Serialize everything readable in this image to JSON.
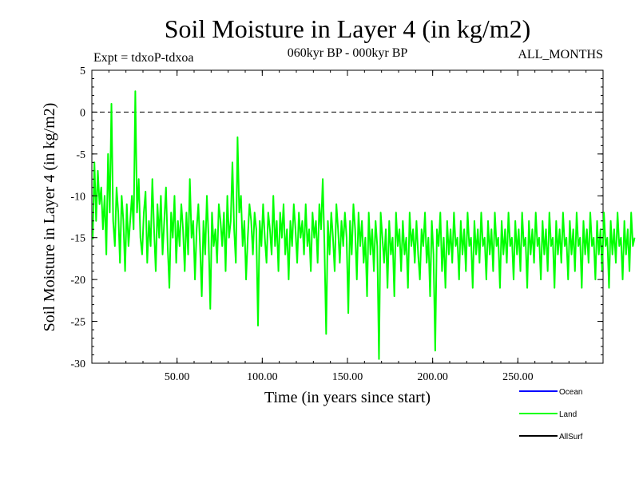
{
  "chart_data": {
    "type": "line",
    "title": "Soil Moisture in Layer 4 (in kg/m2)",
    "subtitle": "060kyr BP - 000kyr BP",
    "experiment": "Expt = tdxoP-tdxoa",
    "months": "ALL_MONTHS",
    "xlabel": "Time (in years since start)",
    "ylabel": "Soil Moisture in Layer 4 (in kg/m2)",
    "xlim": [
      0,
      300
    ],
    "ylim": [
      -30,
      5
    ],
    "x_ticks": [
      {
        "value": 50,
        "label": "50.00"
      },
      {
        "value": 100,
        "label": "100.00"
      },
      {
        "value": 150,
        "label": "150.00"
      },
      {
        "value": 200,
        "label": "200.00"
      },
      {
        "value": 250,
        "label": "250.00"
      }
    ],
    "y_ticks": [
      {
        "value": 5,
        "label": "5"
      },
      {
        "value": 0,
        "label": "0"
      },
      {
        "value": -5,
        "label": "-5"
      },
      {
        "value": -10,
        "label": "-10"
      },
      {
        "value": -15,
        "label": "-15"
      },
      {
        "value": -20,
        "label": "-20"
      },
      {
        "value": -25,
        "label": "-25"
      },
      {
        "value": -30,
        "label": "-30"
      }
    ],
    "zero_line": {
      "value": 0,
      "style": "dashed"
    },
    "legend_position": "bottom-right",
    "legend": [
      {
        "label": "Ocean",
        "color": "#0000ff"
      },
      {
        "label": "Land",
        "color": "#00ff00"
      },
      {
        "label": "AllSurf",
        "color": "#000000"
      }
    ],
    "series": [
      {
        "name": "Land",
        "color": "#00ff00",
        "x_start": 0.5,
        "x_step": 1.0,
        "values": [
          -15.2,
          -6.0,
          -13.0,
          -7.0,
          -11.0,
          -9.0,
          -14.0,
          -10.0,
          -17.0,
          -5.0,
          -12.0,
          1.0,
          -13.0,
          -16.0,
          -9.0,
          -12.0,
          -18.0,
          -10.0,
          -13.0,
          -19.0,
          -11.0,
          -16.0,
          -13.0,
          -10.0,
          -14.0,
          2.5,
          -12.0,
          -8.0,
          -15.0,
          -17.0,
          -12.0,
          -9.5,
          -18.0,
          -13.0,
          -16.0,
          -8.0,
          -14.0,
          -19.0,
          -11.0,
          -15.0,
          -10.0,
          -17.0,
          -13.0,
          -9.0,
          -16.0,
          -21.0,
          -12.0,
          -15.0,
          -10.0,
          -18.0,
          -13.0,
          -16.0,
          -11.0,
          -14.0,
          -19.0,
          -12.0,
          -17.0,
          -8.0,
          -15.0,
          -13.0,
          -20.0,
          -14.0,
          -11.0,
          -16.0,
          -22.0,
          -13.0,
          -17.0,
          -10.0,
          -15.0,
          -23.5,
          -12.0,
          -16.0,
          -14.0,
          -18.0,
          -11.0,
          -13.0,
          -16.0,
          -12.0,
          -19.0,
          -10.0,
          -15.0,
          -13.0,
          -6.0,
          -14.0,
          -18.0,
          -3.0,
          -12.0,
          -10.0,
          -16.0,
          -13.0,
          -20.0,
          -15.0,
          -11.0,
          -13.0,
          -17.0,
          -12.0,
          -14.0,
          -25.5,
          -13.0,
          -16.0,
          -11.0,
          -15.0,
          -18.0,
          -12.0,
          -14.0,
          -17.0,
          -10.0,
          -16.0,
          -13.0,
          -19.0,
          -12.0,
          -15.0,
          -11.0,
          -17.0,
          -14.0,
          -20.0,
          -13.0,
          -16.0,
          -11.0,
          -14.0,
          -18.0,
          -12.0,
          -15.0,
          -13.0,
          -17.0,
          -11.0,
          -16.0,
          -14.0,
          -19.0,
          -12.0,
          -15.0,
          -13.0,
          -18.0,
          -11.0,
          -14.0,
          -8.0,
          -16.0,
          -26.5,
          -13.0,
          -17.0,
          -12.0,
          -15.0,
          -19.0,
          -11.0,
          -14.0,
          -18.0,
          -13.0,
          -16.0,
          -12.0,
          -15.0,
          -24.0,
          -13.0,
          -17.0,
          -11.0,
          -14.0,
          -20.0,
          -12.0,
          -16.0,
          -13.0,
          -18.0,
          -15.0,
          -22.0,
          -12.0,
          -17.0,
          -14.0,
          -19.0,
          -13.0,
          -16.0,
          -29.5,
          -12.0,
          -15.0,
          -18.0,
          -14.0,
          -21.0,
          -13.0,
          -17.0,
          -15.0,
          -22.0,
          -12.0,
          -16.0,
          -14.0,
          -19.0,
          -13.0,
          -17.0,
          -15.0,
          -21.0,
          -12.0,
          -16.0,
          -14.0,
          -18.0,
          -13.0,
          -17.0,
          -20.0,
          -14.0,
          -16.0,
          -12.0,
          -18.0,
          -15.0,
          -22.0,
          -13.0,
          -17.0,
          -28.5,
          -14.0,
          -16.0,
          -12.0,
          -19.0,
          -15.0,
          -21.0,
          -13.0,
          -17.0,
          -14.0,
          -18.0,
          -12.0,
          -16.0,
          -15.0,
          -20.0,
          -13.0,
          -17.0,
          -14.0,
          -19.0,
          -12.0,
          -16.0,
          -15.0,
          -21.0,
          -13.0,
          -17.0,
          -14.0,
          -18.0,
          -12.0,
          -16.0,
          -15.0,
          -20.0,
          -13.0,
          -17.0,
          -14.0,
          -19.0,
          -12.0,
          -16.0,
          -15.0,
          -21.0,
          -13.0,
          -17.0,
          -14.0,
          -18.0,
          -12.0,
          -16.0,
          -15.0,
          -20.0,
          -13.0,
          -17.0,
          -14.0,
          -19.0,
          -12.0,
          -16.0,
          -15.0,
          -21.0,
          -13.0,
          -17.0,
          -14.0,
          -18.0,
          -12.0,
          -16.0,
          -15.0,
          -20.0,
          -13.0,
          -17.0,
          -14.0,
          -19.0,
          -12.0,
          -16.0,
          -15.0,
          -21.0,
          -13.0,
          -17.0,
          -14.0,
          -18.0,
          -12.0,
          -16.0,
          -15.0,
          -20.0,
          -13.0,
          -17.0,
          -14.0,
          -19.0,
          -12.0,
          -16.0,
          -15.0,
          -21.0,
          -13.0,
          -17.0,
          -14.0,
          -18.0,
          -12.0,
          -16.0,
          -15.0,
          -20.0,
          -13.0,
          -17.0,
          -14.0,
          -19.0,
          -12.0,
          -16.0,
          -15.0,
          -21.0,
          -13.0,
          -17.0,
          -14.0,
          -18.0,
          -12.0,
          -16.0,
          -15.0,
          -20.0,
          -13.0,
          -17.0,
          -14.0,
          -19.0,
          -12.0,
          -16.0,
          -15.0
        ]
      }
    ]
  }
}
